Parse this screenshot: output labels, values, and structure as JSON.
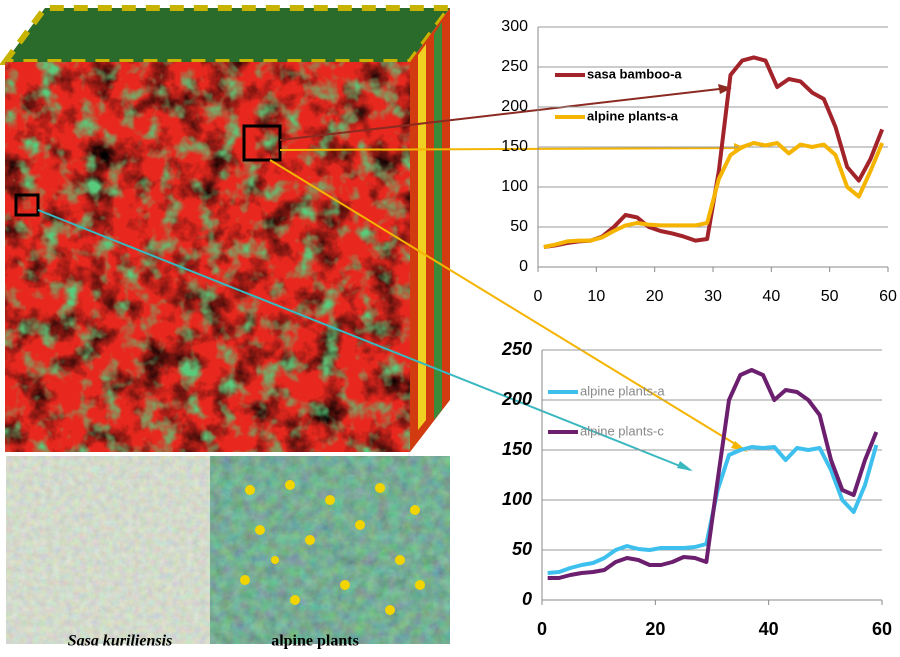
{
  "chart_data": [
    {
      "type": "line",
      "x": [
        1,
        3,
        5,
        7,
        9,
        11,
        13,
        15,
        17,
        19,
        21,
        23,
        25,
        27,
        29,
        31,
        33,
        35,
        37,
        39,
        41,
        43,
        45,
        47,
        49,
        51,
        53,
        55,
        57,
        59
      ],
      "series": [
        {
          "name": "sasa bamboo-a",
          "color": "#a3232b",
          "values": [
            25,
            27,
            30,
            32,
            33,
            38,
            50,
            65,
            62,
            50,
            45,
            42,
            38,
            33,
            35,
            120,
            240,
            258,
            262,
            258,
            225,
            235,
            232,
            218,
            210,
            175,
            125,
            108,
            135,
            172
          ]
        },
        {
          "name": "alpine plants-a",
          "color": "#f4b400",
          "values": [
            25,
            28,
            32,
            33,
            33,
            37,
            45,
            52,
            55,
            53,
            52,
            52,
            52,
            52,
            55,
            110,
            140,
            150,
            155,
            152,
            155,
            142,
            153,
            150,
            153,
            140,
            100,
            88,
            120,
            155
          ]
        }
      ],
      "xlim": [
        0,
        60
      ],
      "xticks": [
        0,
        10,
        20,
        30,
        40,
        50,
        60
      ],
      "ylim": [
        0,
        300
      ],
      "yticks": [
        0,
        50,
        100,
        150,
        200,
        250,
        300
      ],
      "grid": true
    },
    {
      "type": "line",
      "x": [
        1,
        3,
        5,
        7,
        9,
        11,
        13,
        15,
        17,
        19,
        21,
        23,
        25,
        27,
        29,
        31,
        33,
        35,
        37,
        39,
        41,
        43,
        45,
        47,
        49,
        51,
        53,
        55,
        57,
        59
      ],
      "series": [
        {
          "name": "alpine plants-a",
          "color": "#3ec0ee",
          "values": [
            27,
            28,
            32,
            35,
            37,
            42,
            50,
            54,
            51,
            50,
            52,
            52,
            52,
            53,
            56,
            110,
            145,
            150,
            153,
            152,
            153,
            140,
            152,
            150,
            152,
            130,
            100,
            88,
            115,
            155
          ]
        },
        {
          "name": "alpine plants-c",
          "color": "#6b1f6e",
          "values": [
            22,
            22,
            25,
            27,
            28,
            30,
            38,
            42,
            40,
            35,
            35,
            38,
            43,
            42,
            38,
            120,
            200,
            225,
            230,
            225,
            200,
            210,
            208,
            200,
            185,
            140,
            110,
            105,
            140,
            168
          ]
        }
      ],
      "xlim": [
        0,
        60
      ],
      "xticks": [
        0,
        20,
        40,
        60
      ],
      "ylim": [
        0,
        250
      ],
      "yticks": [
        0,
        50,
        100,
        150,
        200,
        250
      ],
      "grid": true
    }
  ],
  "captions": [
    "Sasa kuriliensis",
    "alpine plants"
  ]
}
